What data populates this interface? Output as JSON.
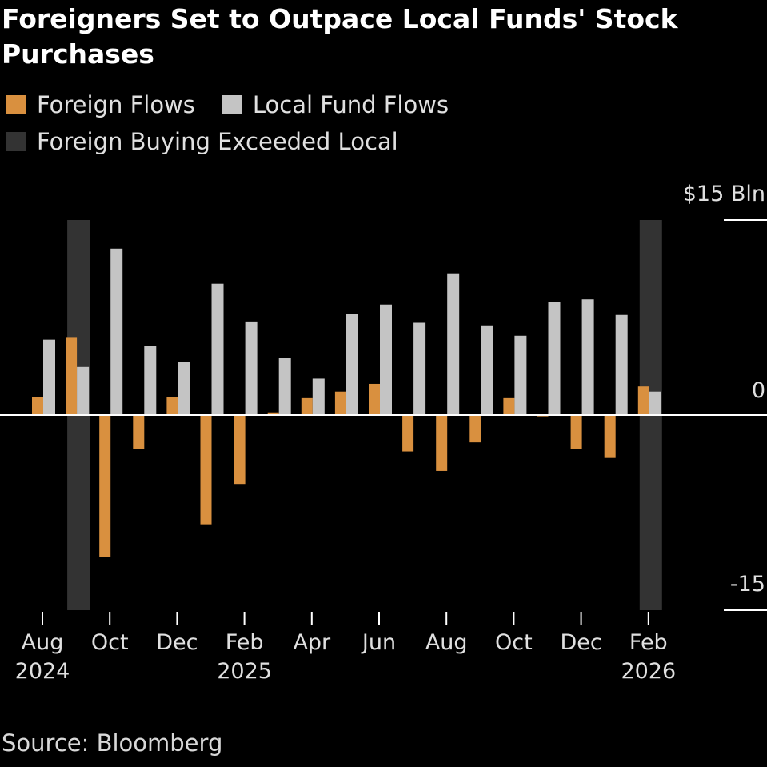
{
  "chart_data": {
    "type": "bar",
    "title": "Foreigners Set to Outpace Local Funds' Stock Purchases",
    "source": "Source: Bloomberg",
    "ylim": [
      -15,
      15
    ],
    "y_ticks": [
      "$15 Bln",
      "0",
      "-15"
    ],
    "y_tick_values": [
      15,
      0,
      -15
    ],
    "legend": [
      {
        "label": "Foreign Flows",
        "color": "#D9903F"
      },
      {
        "label": "Local Fund Flows",
        "color": "#C4C4C4"
      },
      {
        "label": "Foreign Buying Exceeded Local",
        "color": "#333333"
      }
    ],
    "categories": [
      "Aug 2024",
      "Sep 2024",
      "Oct 2024",
      "Nov 2024",
      "Dec 2024",
      "Jan 2025",
      "Feb 2025",
      "Mar 2025",
      "Apr 2025",
      "May 2025",
      "Jun 2025",
      "Jul 2025",
      "Aug 2025",
      "Sep 2025",
      "Oct 2025",
      "Nov 2025",
      "Dec 2025",
      "Jan 2026",
      "Feb 2026"
    ],
    "x_tick_labels": [
      {
        "index": 0,
        "month": "Aug",
        "year": "2024"
      },
      {
        "index": 2,
        "month": "Oct",
        "year": ""
      },
      {
        "index": 4,
        "month": "Dec",
        "year": ""
      },
      {
        "index": 6,
        "month": "Feb",
        "year": "2025"
      },
      {
        "index": 8,
        "month": "Apr",
        "year": ""
      },
      {
        "index": 10,
        "month": "Jun",
        "year": ""
      },
      {
        "index": 12,
        "month": "Aug",
        "year": ""
      },
      {
        "index": 14,
        "month": "Oct",
        "year": ""
      },
      {
        "index": 16,
        "month": "Dec",
        "year": ""
      },
      {
        "index": 18,
        "month": "Feb",
        "year": "2026"
      }
    ],
    "series": [
      {
        "name": "Foreign Flows",
        "values": [
          1.4,
          6.0,
          -10.9,
          -2.6,
          1.4,
          -8.4,
          -5.3,
          0.2,
          1.3,
          1.8,
          2.4,
          -2.8,
          -4.3,
          -2.1,
          1.3,
          -0.1,
          -2.6,
          -3.3,
          2.2
        ]
      },
      {
        "name": "Local Fund Flows",
        "values": [
          5.8,
          3.7,
          12.8,
          5.3,
          4.1,
          10.1,
          7.2,
          4.4,
          2.8,
          7.8,
          8.5,
          7.1,
          10.9,
          6.9,
          6.1,
          8.7,
          8.9,
          7.7,
          1.8
        ]
      }
    ],
    "highlighted_categories": [
      1,
      18
    ]
  }
}
